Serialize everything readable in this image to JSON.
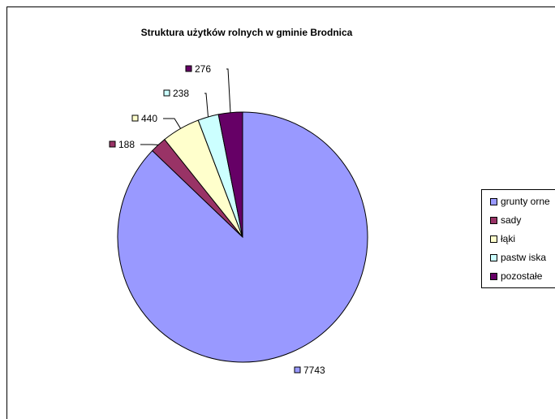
{
  "chart_data": {
    "type": "pie",
    "title": "Struktura użytków rolnych w gminie Brodnica",
    "categories": [
      "grunty orne",
      "sady",
      "łąki",
      "pastw iska",
      "pozostałe"
    ],
    "values": [
      7743,
      188,
      440,
      238,
      276
    ],
    "colors": [
      "#9999ff",
      "#993366",
      "#ffffcc",
      "#ccffff",
      "#660066"
    ],
    "legend": "right",
    "data_labels": [
      "7743",
      "188",
      "440",
      "238",
      "276"
    ]
  }
}
